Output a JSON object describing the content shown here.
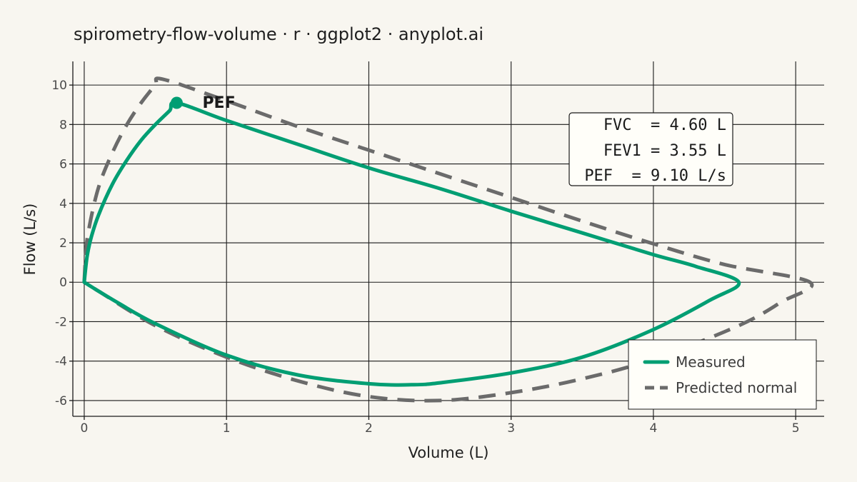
{
  "colors": {
    "background": "#F8F6F0",
    "measured": "#009E73",
    "predicted": "#6B6B6B",
    "grid": "#1A1A1A"
  },
  "chart_data": {
    "type": "line",
    "title": "spirometry-flow-volume · r · ggplot2 · anyplot.ai",
    "xlabel": "Volume (L)",
    "ylabel": "Flow (L/s)",
    "xlim": [
      -0.08,
      5.2
    ],
    "ylim": [
      -6.8,
      11.2
    ],
    "xticks": [
      0,
      1,
      2,
      3,
      4,
      5
    ],
    "xtick_labels": [
      "0",
      "1",
      "2",
      "3",
      "4",
      "5"
    ],
    "yticks": [
      -6,
      -4,
      -2,
      0,
      2,
      4,
      6,
      8,
      10
    ],
    "ytick_labels": [
      "-6",
      "-4",
      "-2",
      "0",
      "2",
      "4",
      "6",
      "8",
      "10"
    ],
    "grid": true,
    "legend_position": "bottom-right",
    "series": [
      {
        "name": "Measured",
        "style": "solid",
        "color": "#009E73",
        "points": [
          [
            0,
            0
          ],
          [
            0.02,
            1.3
          ],
          [
            0.05,
            2.3
          ],
          [
            0.1,
            3.4
          ],
          [
            0.2,
            5.0
          ],
          [
            0.3,
            6.2
          ],
          [
            0.4,
            7.2
          ],
          [
            0.5,
            8.0
          ],
          [
            0.6,
            8.7
          ],
          [
            0.65,
            9.1
          ],
          [
            1.0,
            8.2
          ],
          [
            1.5,
            7.0
          ],
          [
            2.0,
            5.8
          ],
          [
            2.5,
            4.75
          ],
          [
            3.0,
            3.6
          ],
          [
            3.5,
            2.5
          ],
          [
            4.0,
            1.4
          ],
          [
            4.3,
            0.8
          ],
          [
            4.6,
            0.0
          ],
          [
            4.4,
            -0.9
          ],
          [
            4.0,
            -2.4
          ],
          [
            3.5,
            -3.8
          ],
          [
            3.0,
            -4.6
          ],
          [
            2.5,
            -5.1
          ],
          [
            2.3,
            -5.2
          ],
          [
            2.0,
            -5.15
          ],
          [
            1.5,
            -4.7
          ],
          [
            1.0,
            -3.7
          ],
          [
            0.5,
            -2.1
          ],
          [
            0.25,
            -1.1
          ],
          [
            0.1,
            -0.45
          ],
          [
            0,
            0
          ]
        ]
      },
      {
        "name": "Predicted normal",
        "style": "dashed",
        "color": "#6B6B6B",
        "points": [
          [
            0,
            0
          ],
          [
            0.01,
            1.3
          ],
          [
            0.03,
            2.6
          ],
          [
            0.1,
            4.8
          ],
          [
            0.2,
            6.6
          ],
          [
            0.3,
            8.0
          ],
          [
            0.4,
            9.1
          ],
          [
            0.5,
            10.0
          ],
          [
            0.55,
            10.3
          ],
          [
            1.0,
            9.2
          ],
          [
            1.5,
            7.9
          ],
          [
            2.0,
            6.7
          ],
          [
            2.5,
            5.5
          ],
          [
            3.0,
            4.3
          ],
          [
            3.5,
            3.1
          ],
          [
            4.0,
            1.95
          ],
          [
            4.5,
            0.9
          ],
          [
            5.1,
            0.0
          ],
          [
            4.9,
            -1.0
          ],
          [
            4.6,
            -2.2
          ],
          [
            4.0,
            -3.9
          ],
          [
            3.5,
            -4.9
          ],
          [
            3.0,
            -5.6
          ],
          [
            2.5,
            -6.0
          ],
          [
            2.0,
            -5.8
          ],
          [
            1.5,
            -5.0
          ],
          [
            1.0,
            -3.8
          ],
          [
            0.5,
            -2.2
          ],
          [
            0.1,
            -0.45
          ],
          [
            0,
            0
          ]
        ]
      }
    ],
    "pef_point": {
      "label": "PEF",
      "x": 0.65,
      "y": 9.1
    },
    "stats": [
      "FVC  = 4.60 L",
      "FEV1 = 3.55 L",
      "PEF  = 9.10 L/s"
    ]
  }
}
